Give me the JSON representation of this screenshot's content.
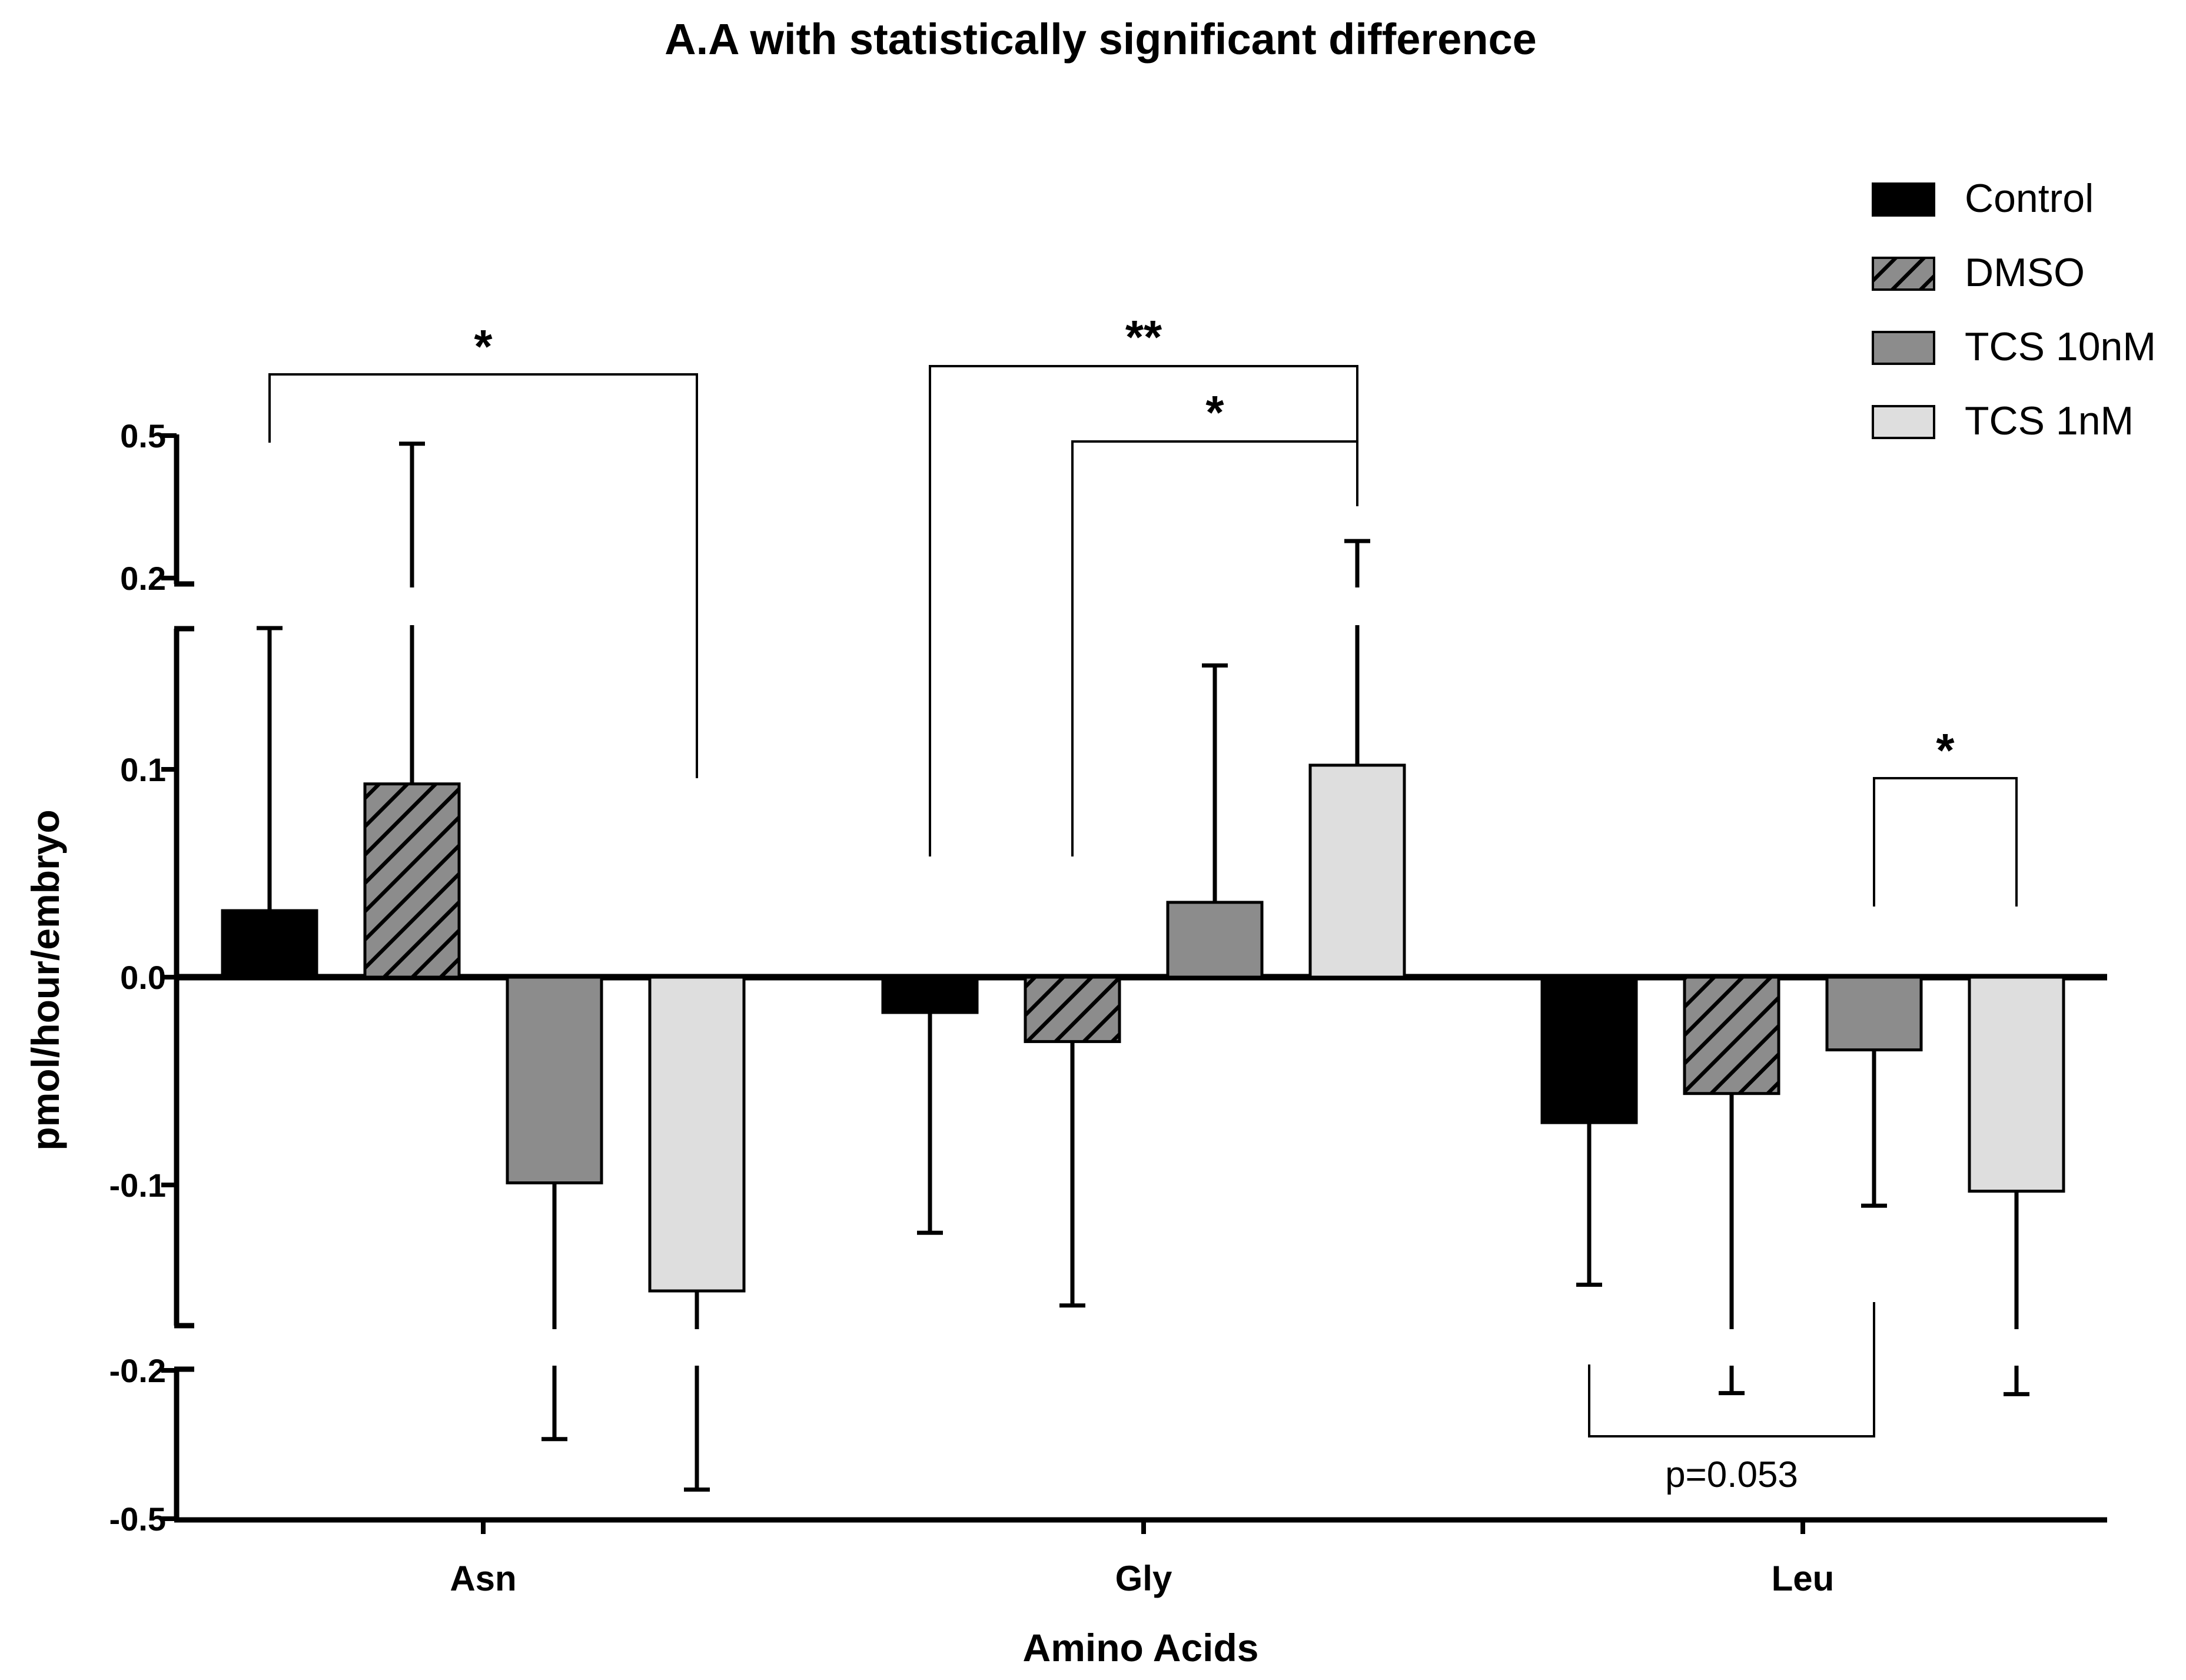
{
  "chart_data": {
    "type": "bar",
    "title": "A.A with statistically significant  difference",
    "xlabel": "Amino Acids",
    "ylabel": "pmol/hour/embryo",
    "categories": [
      "Asn",
      "Gly",
      "Leu"
    ],
    "series": [
      {
        "name": "Control",
        "fill": "#000000",
        "pattern": "solid",
        "values": [
          0.032,
          -0.017,
          -0.07
        ],
        "error": [
          0.136,
          0.106,
          0.078
        ]
      },
      {
        "name": "DMSO",
        "fill": "#8c8c8c",
        "pattern": "hatch",
        "values": [
          0.093,
          -0.031,
          -0.056
        ],
        "error": [
          0.39,
          0.127,
          0.19
        ]
      },
      {
        "name": "TCS 10nM",
        "fill": "#8c8c8c",
        "pattern": "solid",
        "values": [
          -0.099,
          0.036,
          -0.035
        ],
        "error": [
          0.24,
          0.114,
          0.075
        ]
      },
      {
        "name": "TCS 1nM",
        "fill": "#dedede",
        "pattern": "solid",
        "values": [
          -0.151,
          0.102,
          -0.103
        ],
        "error": [
          0.29,
          0.176,
          0.145
        ]
      }
    ],
    "y_axis": {
      "broken": true,
      "segments": [
        {
          "range": [
            -0.5,
            -0.2
          ],
          "ticks": [
            -0.5,
            -0.2
          ]
        },
        {
          "range": [
            -0.17,
            0.17
          ],
          "ticks": [
            -0.1,
            0.0,
            0.1
          ]
        },
        {
          "range": [
            0.2,
            0.5
          ],
          "ticks": [
            0.2,
            0.5
          ]
        }
      ],
      "tick_labels": [
        "-0.5",
        "-0.2",
        "-0.1",
        "0.0",
        "0.1",
        "0.2",
        "0.5"
      ]
    },
    "legend": {
      "position": "top-right"
    },
    "grid": false,
    "annotations": [
      {
        "text": "*",
        "between": [
          "Asn Control",
          "Asn TCS 1nM"
        ]
      },
      {
        "text": "**",
        "between": [
          "Gly Control",
          "Gly TCS 1nM"
        ]
      },
      {
        "text": "*",
        "between": [
          "Gly DMSO",
          "Gly TCS 1nM"
        ]
      },
      {
        "text": "*",
        "between": [
          "Leu TCS 10nM",
          "Leu TCS 1nM"
        ]
      },
      {
        "text": "p=0.053",
        "between": [
          "Leu Control",
          "Leu TCS 10nM"
        ]
      }
    ]
  }
}
